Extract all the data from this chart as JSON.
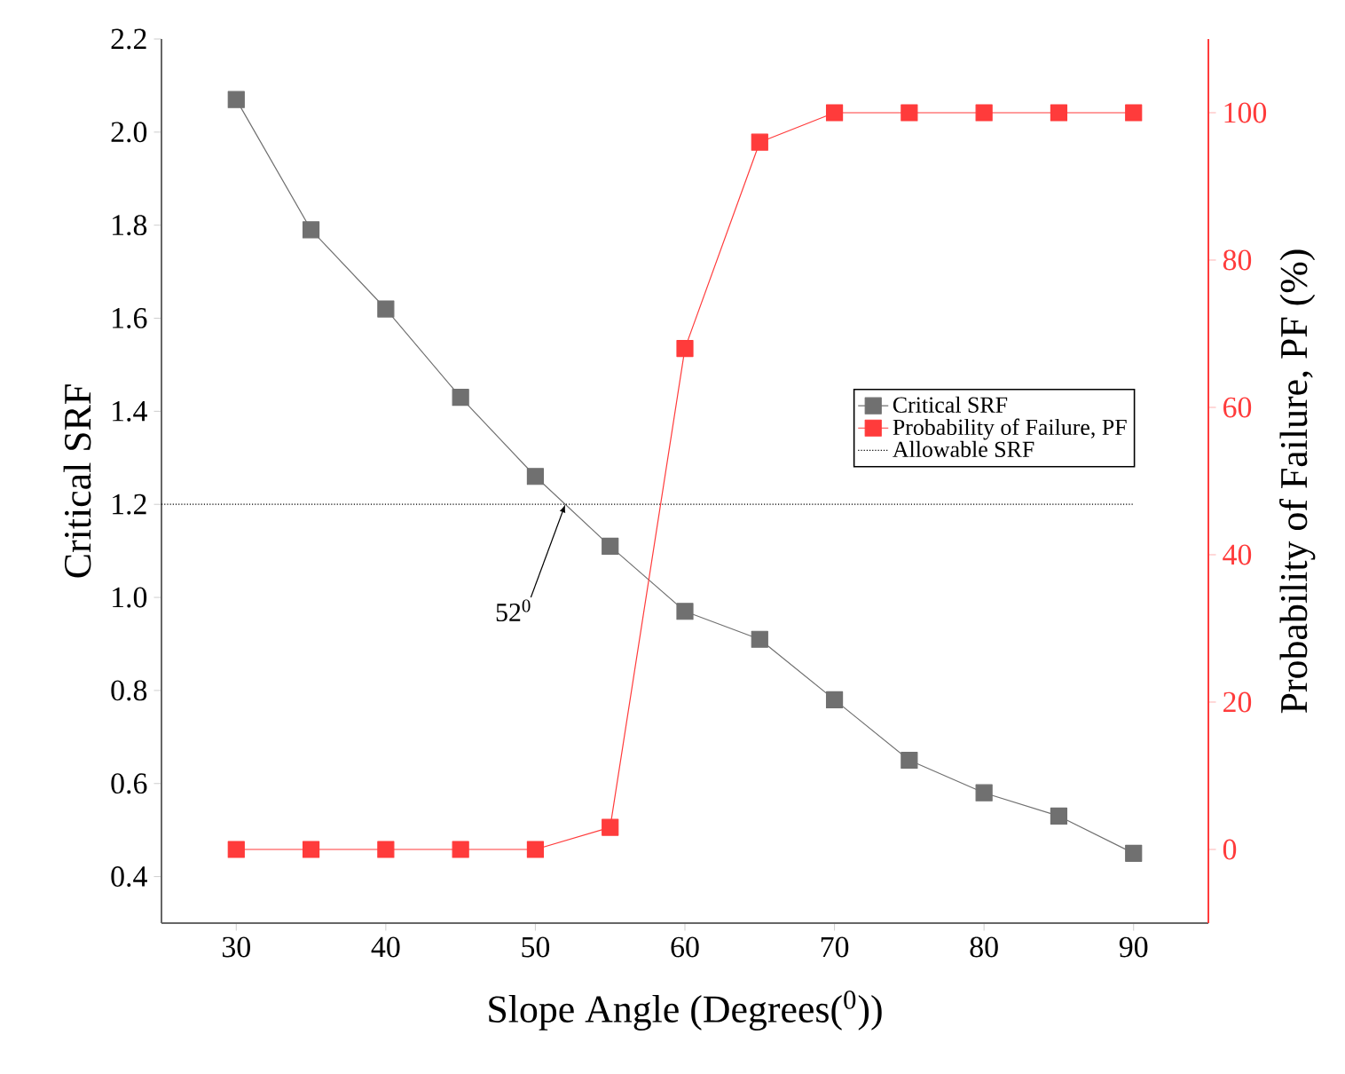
{
  "chart_data": {
    "type": "line",
    "xlabel": "Slope Angle (Degrees($^{0}$))",
    "ylabel": "Critical SRF",
    "y2label": "Probability of Failure, PF (%)",
    "x": [
      30,
      35,
      40,
      45,
      50,
      55,
      60,
      65,
      70,
      75,
      80,
      85,
      90
    ],
    "series": [
      {
        "name": "Critical SRF",
        "color": "#707070",
        "marker": "square",
        "values": [
          2.07,
          1.79,
          1.62,
          1.43,
          1.26,
          1.11,
          0.97,
          0.91,
          0.78,
          0.65,
          0.58,
          0.53,
          0.45
        ]
      },
      {
        "name": "Probability of Failure, PF",
        "color": "#ff3b3b",
        "marker": "square",
        "axis": "y2",
        "values": [
          0,
          0,
          0,
          0,
          0,
          3,
          68,
          96,
          100,
          100,
          100,
          100,
          100
        ]
      },
      {
        "name": "Allowable SRF",
        "color": "#000000",
        "marker": "none",
        "line_style": "dotted",
        "x": [
          25,
          90
        ],
        "values": [
          1.2,
          1.2
        ]
      }
    ],
    "annotations": [
      {
        "text": "52$^{0}$",
        "x": 52,
        "y": 1.2
      }
    ],
    "xlim": [
      25,
      95
    ],
    "xticks": [
      30,
      40,
      50,
      60,
      70,
      80,
      90
    ],
    "ylim": [
      0.3,
      2.2
    ],
    "yticks": [
      0.4,
      0.6,
      0.8,
      {
        "value": 1,
        "label": "1.0"
      },
      1.2,
      1.4,
      1.6,
      1.8,
      {
        "value": 2,
        "label": "2.0"
      },
      2.2
    ],
    "y2lim": [
      -10,
      110
    ],
    "y2ticks": [
      0,
      20,
      40,
      60,
      80,
      100
    ],
    "grid": false,
    "legend": "right"
  }
}
